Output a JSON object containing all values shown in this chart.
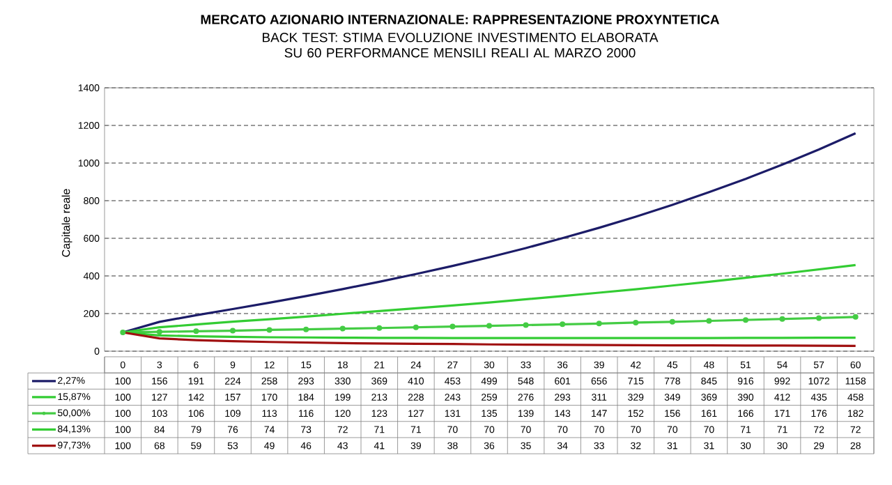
{
  "chart_data": {
    "type": "line",
    "title": "MERCATO AZIONARIO INTERNAZIONALE: RAPPRESENTAZIONE PROXYNTETICA",
    "subtitle": "BACK TEST: STIMA EVOLUZIONE INVESTIMENTO ELABORATA SU 60 PERFORMANCE MENSILI REALI AL MARZO 2000",
    "ylabel": "Capitale reale",
    "categories": [
      "0",
      "3",
      "6",
      "9",
      "12",
      "15",
      "18",
      "21",
      "24",
      "27",
      "30",
      "33",
      "36",
      "39",
      "42",
      "45",
      "48",
      "51",
      "54",
      "57",
      "60"
    ],
    "series": [
      {
        "name": "2,27%",
        "color": "#1c1c68",
        "values": [
          100,
          156,
          191,
          224,
          258,
          293,
          330,
          369,
          410,
          453,
          499,
          548,
          601,
          656,
          715,
          778,
          845,
          916,
          992,
          1072,
          1158
        ]
      },
      {
        "name": "15,87%",
        "color": "#33cc33",
        "values": [
          100,
          127,
          142,
          157,
          170,
          184,
          199,
          213,
          228,
          243,
          259,
          276,
          293,
          311,
          329,
          349,
          369,
          390,
          412,
          435,
          458
        ]
      },
      {
        "name": "50,00%",
        "color": "#44cc44",
        "marker": "circle",
        "values": [
          100,
          103,
          106,
          109,
          113,
          116,
          120,
          123,
          127,
          131,
          135,
          139,
          143,
          147,
          152,
          156,
          161,
          166,
          171,
          176,
          182
        ]
      },
      {
        "name": "84,13%",
        "color": "#33cc33",
        "values": [
          100,
          84,
          79,
          76,
          74,
          73,
          72,
          71,
          71,
          70,
          70,
          70,
          70,
          70,
          70,
          70,
          70,
          71,
          71,
          72,
          72
        ]
      },
      {
        "name": "97,73%",
        "color": "#a01010",
        "values": [
          100,
          68,
          59,
          53,
          49,
          46,
          43,
          41,
          39,
          38,
          36,
          35,
          34,
          33,
          32,
          31,
          31,
          30,
          30,
          29,
          28
        ]
      }
    ],
    "ylim": [
      0,
      1400
    ],
    "yticks": [
      0,
      200,
      400,
      600,
      800,
      1000,
      1200,
      1400
    ],
    "grid": "y",
    "legend": "bottom",
    "data_labels": true
  }
}
